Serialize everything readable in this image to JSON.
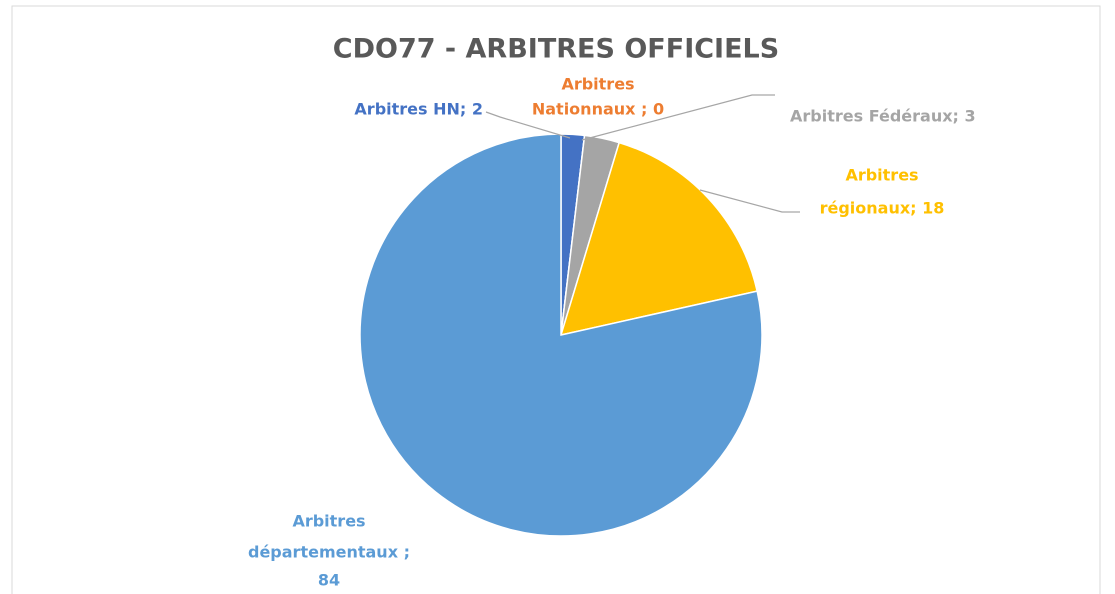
{
  "chart_data": {
    "type": "pie",
    "title": "CDO77 - ARBITRES OFFICIELS",
    "values": [
      2,
      0,
      3,
      18,
      84
    ],
    "value_labels": [
      [
        "Arbitres HN; 2"
      ],
      [
        "Arbitres",
        "Nationnaux ; 0"
      ],
      [
        "Arbitres Fédéraux; 3"
      ],
      [
        "Arbitres",
        "régionaux; 18"
      ],
      [
        "Arbitres",
        "départementaux ;",
        "84"
      ]
    ],
    "colors": [
      "#4472c4",
      "#ed7d31",
      "#a5a5a5",
      "#ffc000",
      "#5b9bd5"
    ]
  }
}
